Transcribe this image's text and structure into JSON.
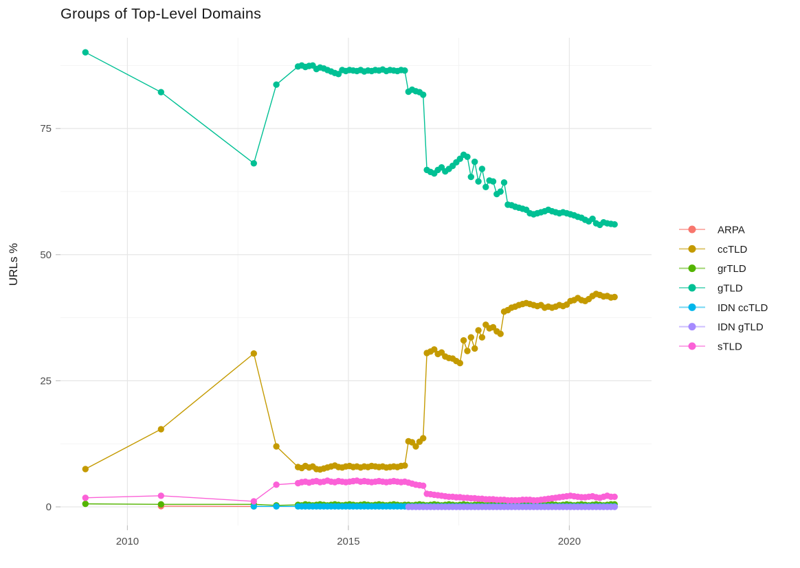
{
  "title": "Groups of Top-Level Domains",
  "axes": {
    "y_axis_title": "URLs %",
    "x_tick_labels": [
      "2010",
      "2015",
      "2020"
    ],
    "y_tick_labels": [
      "0",
      "25",
      "50",
      "75"
    ]
  },
  "legend": {
    "items": [
      {
        "label": "ARPA",
        "color": "#F8766D"
      },
      {
        "label": "ccTLD",
        "color": "#C49A00"
      },
      {
        "label": "grTLD",
        "color": "#53B400"
      },
      {
        "label": "gTLD",
        "color": "#00C094"
      },
      {
        "label": "IDN ccTLD",
        "color": "#00B6EB"
      },
      {
        "label": "IDN gTLD",
        "color": "#A58AFF"
      },
      {
        "label": "sTLD",
        "color": "#FB61D7"
      }
    ]
  },
  "colors": {
    "grid_major": "#e6e6e6",
    "grid_minor": "#f2f2f2",
    "axis_tick": "#c2c2c2",
    "text_dark": "#191919",
    "text_axis": "#4d4d4d",
    "background": "#ffffff"
  },
  "chart_data": {
    "type": "line",
    "title": "Groups of Top-Level Domains",
    "xlabel": "",
    "ylabel": "URLs %",
    "xlim": [
      2008.5,
      2021.9
    ],
    "ylim": [
      -3.5,
      93
    ],
    "x_major_ticks": [
      2010,
      2015,
      2020
    ],
    "x_minor_ticks": [
      2012.5,
      2017.5
    ],
    "y_major_ticks": [
      0,
      25,
      50,
      75
    ],
    "y_minor_ticks": [
      12.5,
      37.5,
      62.5,
      87.5
    ],
    "grid": true,
    "legend_position": "right-center",
    "marker_radius": 4.7,
    "series": [
      {
        "name": "ARPA",
        "color": "#F8766D",
        "points": [
          [
            2010.76,
            0.15
          ],
          [
            2012.86,
            0.1
          ]
        ]
      },
      {
        "name": "ccTLD",
        "color": "#C49A00",
        "points": [
          [
            2009.05,
            7.5
          ],
          [
            2010.76,
            15.4
          ],
          [
            2012.86,
            30.4
          ],
          [
            2013.37,
            12.0
          ]
        ],
        "dense": {
          "x_start": 2013.86,
          "x_step": 0.0833,
          "values": [
            7.9,
            7.7,
            8.1,
            7.8,
            8.0,
            7.5,
            7.4,
            7.6,
            7.8,
            8.0,
            8.2,
            7.9,
            7.8,
            8.0,
            8.1,
            7.9,
            8.0,
            7.8,
            8.0,
            7.9,
            8.1,
            8.0,
            7.9,
            8.0,
            7.8,
            7.9,
            8.0,
            7.9,
            8.1,
            8.2,
            13.0,
            12.8,
            12.0,
            12.9,
            13.6,
            30.5,
            30.8,
            31.2,
            30.3,
            30.6,
            29.8,
            29.5,
            29.4,
            28.9,
            28.5,
            33.0,
            30.9,
            33.6,
            31.4,
            35.0,
            33.6,
            36.1,
            35.4,
            35.6,
            34.8,
            34.3,
            38.7,
            39.0,
            39.5,
            39.7,
            40.0,
            40.2,
            40.4,
            40.2,
            40.0,
            39.8,
            40.0,
            39.5,
            39.7,
            39.5,
            39.7,
            40.0,
            39.8,
            40.1,
            40.8,
            41.0,
            41.4,
            41.0,
            40.8,
            41.2,
            41.8,
            42.2,
            42.0,
            41.7,
            41.8,
            41.5,
            41.6
          ]
        }
      },
      {
        "name": "grTLD",
        "color": "#53B400",
        "points": [
          [
            2009.05,
            0.6
          ],
          [
            2010.76,
            0.5
          ],
          [
            2012.86,
            0.5
          ],
          [
            2013.37,
            0.3
          ]
        ],
        "dense": {
          "x_start": 2013.86,
          "x_step": 0.0833,
          "values": [
            0.4,
            0.3,
            0.5,
            0.4,
            0.3,
            0.4,
            0.5,
            0.4,
            0.3,
            0.4,
            0.5,
            0.4,
            0.3,
            0.4,
            0.5,
            0.4,
            0.3,
            0.4,
            0.5,
            0.4,
            0.3,
            0.4,
            0.5,
            0.4,
            0.3,
            0.4,
            0.5,
            0.4,
            0.3,
            0.4,
            0.4,
            0.3,
            0.4,
            0.5,
            0.4,
            0.3,
            0.4,
            0.5,
            0.4,
            0.3,
            0.4,
            0.5,
            0.4,
            0.3,
            0.4,
            0.5,
            0.4,
            0.3,
            0.4,
            0.5,
            0.4,
            0.3,
            0.4,
            0.5,
            0.4,
            0.3,
            0.4,
            0.5,
            0.4,
            0.3,
            0.4,
            0.5,
            0.4,
            0.3,
            0.4,
            0.5,
            0.4,
            0.3,
            0.4,
            0.5,
            0.4,
            0.3,
            0.4,
            0.5,
            0.4,
            0.3,
            0.4,
            0.5,
            0.4,
            0.3,
            0.4,
            0.5,
            0.4,
            0.3,
            0.4,
            0.5,
            0.5
          ]
        }
      },
      {
        "name": "gTLD",
        "color": "#00C094",
        "points": [
          [
            2009.05,
            90.1
          ],
          [
            2010.76,
            82.2
          ],
          [
            2012.86,
            68.1
          ],
          [
            2013.37,
            83.7
          ]
        ],
        "dense": {
          "x_start": 2013.86,
          "x_step": 0.0833,
          "values": [
            87.3,
            87.5,
            87.2,
            87.4,
            87.5,
            86.8,
            87.1,
            86.9,
            86.6,
            86.3,
            86.0,
            85.8,
            86.6,
            86.4,
            86.6,
            86.5,
            86.4,
            86.6,
            86.3,
            86.5,
            86.4,
            86.6,
            86.5,
            86.7,
            86.4,
            86.6,
            86.5,
            86.4,
            86.6,
            86.5,
            82.3,
            82.7,
            82.4,
            82.2,
            81.7,
            66.8,
            66.4,
            66.1,
            66.8,
            67.3,
            66.5,
            67.0,
            67.6,
            68.3,
            69.0,
            69.8,
            69.4,
            65.4,
            68.4,
            64.5,
            67.0,
            63.4,
            64.7,
            64.5,
            62.0,
            62.5,
            64.3,
            59.9,
            59.8,
            59.5,
            59.3,
            59.1,
            58.9,
            58.2,
            58.0,
            58.2,
            58.4,
            58.6,
            58.9,
            58.6,
            58.4,
            58.2,
            58.4,
            58.2,
            58.0,
            57.8,
            57.5,
            57.3,
            56.9,
            56.6,
            57.1,
            56.2,
            55.9,
            56.4,
            56.2,
            56.1,
            56.0
          ]
        }
      },
      {
        "name": "IDN ccTLD",
        "color": "#00B6EB",
        "points": [
          [
            2012.86,
            0.1
          ],
          [
            2013.37,
            0.1
          ]
        ],
        "dense": {
          "x_start": 2013.86,
          "x_step": 0.0833,
          "values": [
            0.1,
            0.1,
            0.1,
            0.1,
            0.1,
            0.1,
            0.1,
            0.1,
            0.1,
            0.1,
            0.1,
            0.1,
            0.1,
            0.1,
            0.1,
            0.1,
            0.1,
            0.1,
            0.1,
            0.1,
            0.1,
            0.1,
            0.1,
            0.1,
            0.1,
            0.1,
            0.1,
            0.1,
            0.1,
            0.1,
            0.1,
            0.1,
            0.1,
            0.1,
            0.1,
            0.1,
            0.1,
            0.1,
            0.1,
            0.1,
            0.1,
            0.1,
            0.1,
            0.1,
            0.1,
            0.1,
            0.1,
            0.1,
            0.1,
            0.1,
            0.1,
            0.1,
            0.1,
            0.1,
            0.1,
            0.1,
            0.1,
            0.1,
            0.1,
            0.1,
            0.1,
            0.1,
            0.1,
            0.1,
            0.1,
            0.1,
            0.1,
            0.1,
            0.1,
            0.1,
            0.1,
            0.1,
            0.1,
            0.1,
            0.1,
            0.1,
            0.1,
            0.1,
            0.1,
            0.1,
            0.1,
            0.1,
            0.1,
            0.1,
            0.1,
            0.1,
            0.1
          ]
        }
      },
      {
        "name": "IDN gTLD",
        "color": "#A58AFF",
        "points": [],
        "dense": {
          "x_start": 2016.36,
          "x_step": 0.0833,
          "values": [
            0.0,
            0.0,
            0.0,
            0.0,
            0.0,
            0.0,
            0.0,
            0.0,
            0.0,
            0.0,
            0.0,
            0.0,
            0.0,
            0.0,
            0.0,
            0.0,
            0.0,
            0.0,
            0.0,
            0.0,
            0.0,
            0.0,
            0.0,
            0.0,
            0.0,
            0.0,
            0.0,
            0.0,
            0.0,
            0.0,
            0.0,
            0.0,
            0.0,
            0.0,
            0.0,
            0.0,
            0.0,
            0.0,
            0.0,
            0.0,
            0.0,
            0.0,
            0.0,
            0.0,
            0.0,
            0.0,
            0.0,
            0.0,
            0.0,
            0.0,
            0.0,
            0.0,
            0.0,
            0.0,
            0.0,
            0.0,
            0.0
          ]
        }
      },
      {
        "name": "sTLD",
        "color": "#FB61D7",
        "points": [
          [
            2009.05,
            1.8
          ],
          [
            2010.76,
            2.2
          ],
          [
            2012.86,
            1.1
          ],
          [
            2013.37,
            4.4
          ]
        ],
        "dense": {
          "x_start": 2013.86,
          "x_step": 0.0833,
          "values": [
            4.7,
            4.9,
            5.0,
            4.8,
            5.0,
            5.1,
            4.9,
            5.0,
            5.2,
            5.0,
            4.9,
            5.1,
            5.0,
            4.9,
            5.0,
            5.1,
            5.2,
            5.0,
            5.1,
            5.0,
            4.9,
            5.0,
            5.1,
            5.0,
            4.9,
            5.0,
            5.1,
            5.0,
            4.9,
            5.0,
            4.8,
            4.6,
            4.4,
            4.3,
            4.2,
            2.6,
            2.5,
            2.4,
            2.3,
            2.2,
            2.1,
            2.0,
            2.0,
            1.9,
            1.9,
            1.8,
            1.8,
            1.7,
            1.7,
            1.6,
            1.6,
            1.5,
            1.5,
            1.5,
            1.4,
            1.4,
            1.4,
            1.3,
            1.3,
            1.3,
            1.3,
            1.4,
            1.4,
            1.4,
            1.3,
            1.3,
            1.4,
            1.5,
            1.6,
            1.7,
            1.8,
            1.9,
            2.0,
            2.1,
            2.2,
            2.1,
            2.0,
            1.9,
            1.9,
            2.0,
            2.1,
            1.9,
            1.8,
            2.0,
            2.2,
            2.0,
            2.0
          ]
        }
      }
    ]
  }
}
